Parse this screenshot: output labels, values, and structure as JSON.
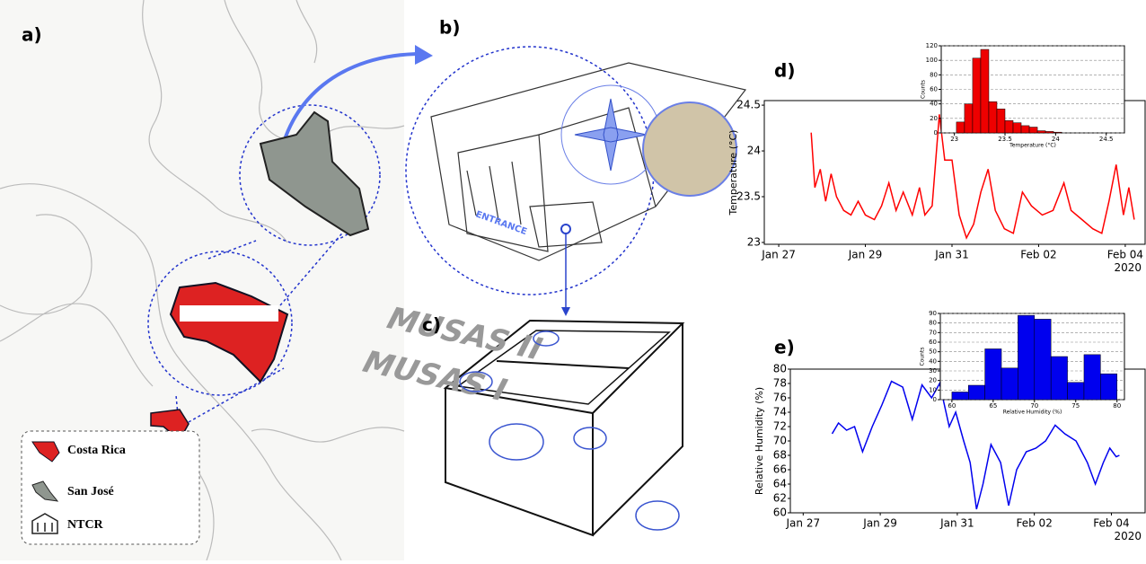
{
  "panels": [
    "a)",
    "b)",
    "c)",
    "d)",
    "e)"
  ],
  "legend": [
    "Costa Rica",
    "San José",
    "NTCR"
  ],
  "diagram": {
    "entrance": "ENTRANCE",
    "room_1": "MUSAS II",
    "room_2": "MUSAS I"
  },
  "chart_data": [
    {
      "type": "line",
      "color": "#ff0000",
      "ylabel": "Temperature (°C)",
      "x_offset_text": "2020",
      "xlim": [
        "2020-01-26T16:00",
        "2020-02-04T11:00"
      ],
      "xticks": [
        {
          "value": "2020-01-27",
          "label": "Jan 27"
        },
        {
          "value": "2020-01-29",
          "label": "Jan 29"
        },
        {
          "value": "2020-01-31",
          "label": "Jan 31"
        },
        {
          "value": "2020-02-02",
          "label": "Feb 02"
        },
        {
          "value": "2020-02-04",
          "label": "Feb 04"
        }
      ],
      "ylim": [
        22.98,
        24.55
      ],
      "yticks": [
        23,
        23.5,
        24,
        24.5
      ],
      "x": [
        "2020-01-27T18:00",
        "2020-01-27T20:00",
        "2020-01-27T23:00",
        "2020-01-28T02:00",
        "2020-01-28T05:00",
        "2020-01-28T08:00",
        "2020-01-28T12:00",
        "2020-01-28T16:00",
        "2020-01-28T20:00",
        "2020-01-29T00:00",
        "2020-01-29T05:00",
        "2020-01-29T09:00",
        "2020-01-29T13:00",
        "2020-01-29T17:00",
        "2020-01-29T21:00",
        "2020-01-30T02:00",
        "2020-01-30T06:00",
        "2020-01-30T09:00",
        "2020-01-30T13:00",
        "2020-01-30T17:00",
        "2020-01-30T20:00",
        "2020-01-31T00:00",
        "2020-01-31T04:00",
        "2020-01-31T08:00",
        "2020-01-31T12:00",
        "2020-01-31T16:00",
        "2020-01-31T20:00",
        "2020-02-01T00:00",
        "2020-02-01T05:00",
        "2020-02-01T10:00",
        "2020-02-01T15:00",
        "2020-02-01T20:00",
        "2020-02-02T02:00",
        "2020-02-02T08:00",
        "2020-02-02T14:00",
        "2020-02-02T18:00",
        "2020-02-03T00:00",
        "2020-02-03T06:00",
        "2020-02-03T11:00",
        "2020-02-03T15:00",
        "2020-02-03T19:00",
        "2020-02-03T23:00",
        "2020-02-04T02:00",
        "2020-02-04T05:00"
      ],
      "values": [
        24.2,
        23.6,
        23.8,
        23.45,
        23.75,
        23.5,
        23.35,
        23.3,
        23.45,
        23.3,
        23.25,
        23.4,
        23.65,
        23.35,
        23.55,
        23.3,
        23.6,
        23.3,
        23.4,
        24.4,
        23.9,
        23.9,
        23.3,
        23.05,
        23.2,
        23.55,
        23.8,
        23.35,
        23.15,
        23.1,
        23.55,
        23.4,
        23.3,
        23.35,
        23.65,
        23.35,
        23.25,
        23.15,
        23.1,
        23.45,
        23.85,
        23.3,
        23.6,
        23.25
      ]
    },
    {
      "type": "histogram",
      "color": "#ee0000",
      "xlabel": "Temperature (°C)",
      "ylabel": "Counts",
      "grid": true,
      "xlim": [
        22.87,
        24.68
      ],
      "xticks": [
        23,
        23.5,
        24,
        24.5
      ],
      "ylim": [
        0,
        120
      ],
      "yticks": [
        0,
        20,
        40,
        60,
        80,
        100,
        120
      ],
      "bins": [
        23.02,
        23.1,
        23.18,
        23.26,
        23.34,
        23.42,
        23.5,
        23.58,
        23.66,
        23.74,
        23.82,
        23.9,
        23.98,
        24.06
      ],
      "values": [
        15,
        40,
        103,
        115,
        43,
        33,
        17,
        14,
        10,
        8,
        3,
        2,
        1
      ]
    },
    {
      "type": "line",
      "color": "#0000ee",
      "ylabel": "Relative Humidity (%)",
      "x_offset_text": "2020",
      "xlim": [
        "2020-01-26T16:00",
        "2020-02-04T21:00"
      ],
      "xticks": [
        {
          "value": "2020-01-27",
          "label": "Jan 27"
        },
        {
          "value": "2020-01-29",
          "label": "Jan 29"
        },
        {
          "value": "2020-01-31",
          "label": "Jan 31"
        },
        {
          "value": "2020-02-02",
          "label": "Feb 02"
        },
        {
          "value": "2020-02-04",
          "label": "Feb 04"
        }
      ],
      "ylim": [
        60,
        80
      ],
      "yticks": [
        60,
        62,
        64,
        66,
        68,
        70,
        72,
        74,
        76,
        78,
        80
      ],
      "x": [
        "2020-01-27T18:00",
        "2020-01-27T22:00",
        "2020-01-28T03:00",
        "2020-01-28T08:00",
        "2020-01-28T13:00",
        "2020-01-28T19:00",
        "2020-01-29T01:00",
        "2020-01-29T07:00",
        "2020-01-29T14:00",
        "2020-01-29T20:00",
        "2020-01-30T02:00",
        "2020-01-30T08:00",
        "2020-01-30T13:00",
        "2020-01-30T19:00",
        "2020-01-30T23:00",
        "2020-01-31T04:00",
        "2020-01-31T08:00",
        "2020-01-31T12:00",
        "2020-01-31T16:00",
        "2020-01-31T21:00",
        "2020-02-01T03:00",
        "2020-02-01T08:00",
        "2020-02-01T13:00",
        "2020-02-01T19:00",
        "2020-02-02T01:00",
        "2020-02-02T07:00",
        "2020-02-02T13:00",
        "2020-02-02T19:00",
        "2020-02-03T02:00",
        "2020-02-03T09:00",
        "2020-02-03T14:00",
        "2020-02-03T19:00",
        "2020-02-03T23:00",
        "2020-02-04T03:00",
        "2020-02-04T05:00"
      ],
      "values": [
        71,
        72.5,
        71.5,
        72,
        68.5,
        72,
        75,
        78.3,
        77.5,
        73,
        77.8,
        76,
        78,
        72,
        74,
        70,
        67,
        60.5,
        64,
        69.5,
        67,
        61,
        66,
        68.5,
        69,
        70,
        72.2,
        71,
        70,
        67,
        64,
        67,
        69,
        67.8,
        68
      ]
    },
    {
      "type": "histogram",
      "color": "#0000ee",
      "xlabel": "Relative Humidity (%)",
      "ylabel": "Counts",
      "grid": true,
      "xlim": [
        58.6,
        80.9
      ],
      "xticks": [
        60,
        65,
        70,
        75,
        80
      ],
      "ylim": [
        0,
        90
      ],
      "yticks": [
        0,
        10,
        20,
        30,
        40,
        50,
        60,
        70,
        80,
        90
      ],
      "bins": [
        60,
        62,
        64,
        66,
        68,
        70,
        72,
        74,
        76,
        78,
        80
      ],
      "values": [
        8,
        15,
        53,
        33,
        88,
        84,
        45,
        18,
        47,
        27
      ]
    }
  ]
}
